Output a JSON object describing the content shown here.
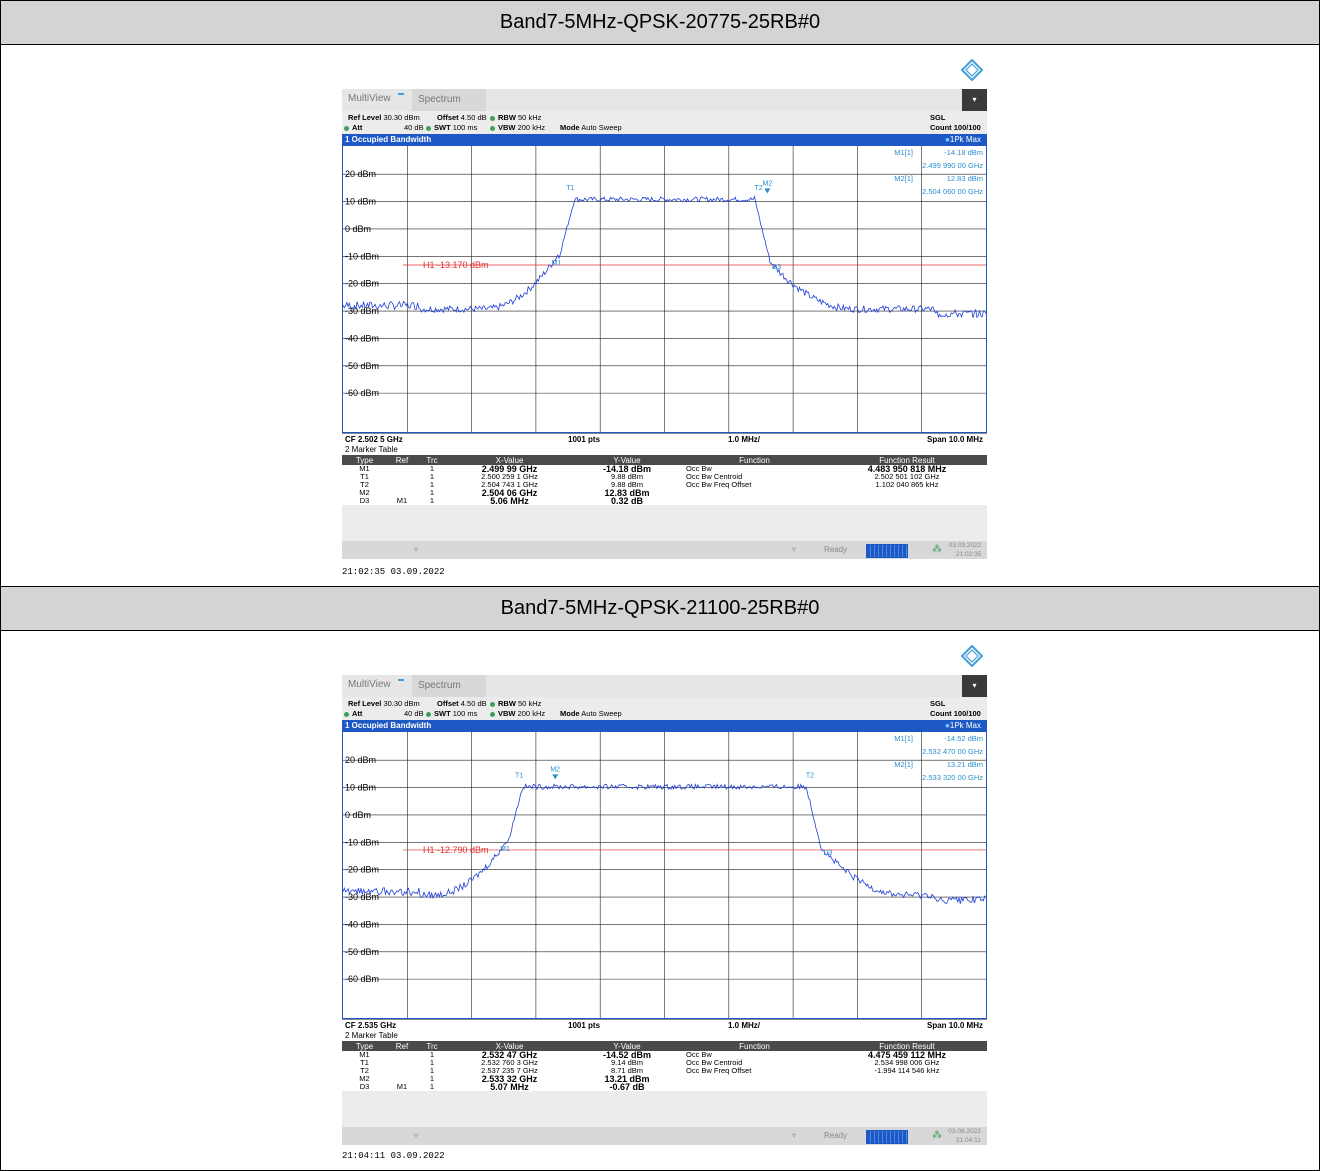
{
  "panels": [
    {
      "header": "Band7-5MHz-QPSK-20775-25RB#0",
      "tab1": "MultiView",
      "tab2": "Spectrum",
      "ref_level_label": "Ref Level",
      "ref_level": "30.30 dBm",
      "offset_label": "Offset",
      "offset": "4.50 dB",
      "rbw_label": "RBW",
      "rbw": "50 kHz",
      "att_label": "Att",
      "att": "40 dB",
      "swt_label": "SWT",
      "swt": "100 ms",
      "vbw_label": "VBW",
      "vbw": "200 kHz",
      "mode_label": "Mode",
      "mode": "Auto Sweep",
      "sgl": "SGL",
      "count": "Count 100/100",
      "window_title": "1 Occupied Bandwidth",
      "trace_label": "1Pk Max",
      "m1_label": "M1[1]",
      "m1_level": "-14.18 dBm",
      "m1_freq": "2.499 990 00 GHz",
      "m2_label": "M2[1]",
      "m2_level": "12.83 dBm",
      "m2_freq": "2.504 060 00 GHz",
      "ylabels": [
        "20 dBm",
        "10 dBm",
        "0 dBm",
        "-10 dBm",
        "-20 dBm",
        "-30 dBm",
        "-40 dBm",
        "-50 dBm",
        "-60 dBm"
      ],
      "h1_label": "H1 -13.170 dBm",
      "h1_value": -13.17,
      "cf": "CF 2.502 5 GHz",
      "pts": "1001 pts",
      "div": "1.0 MHz/",
      "span": "Span 10.0 MHz",
      "marker_table_title": "2 Marker Table",
      "table_headers": [
        "Type",
        "Ref",
        "Trc",
        "X-Value",
        "Y-Value",
        "Function",
        "Function Result"
      ],
      "rows": [
        [
          "M1",
          "",
          "1",
          "2.499 99 GHz",
          "-14.18 dBm",
          "Occ Bw",
          "4.483 950 818 MHz"
        ],
        [
          "T1",
          "",
          "1",
          "2.500 259 1 GHz",
          "9.88 dBm",
          "Occ Bw Centroid",
          "2.502 501 102 GHz"
        ],
        [
          "T2",
          "",
          "1",
          "2.504 743 1 GHz",
          "9.88 dBm",
          "Occ Bw Freq Offset",
          "1.102 040 865 kHz"
        ],
        [
          "M2",
          "",
          "1",
          "2.504 06 GHz",
          "12.83 dBm",
          "",
          ""
        ],
        [
          "D3",
          "M1",
          "1",
          "5.06 MHz",
          "0.32 dB",
          "",
          ""
        ]
      ],
      "status": "Ready",
      "status_date": "03.09.2022",
      "status_time": "21:02:35",
      "timestamp": "21:02:35  03.09.2022",
      "trace": {
        "t1_div": 3.6,
        "t2_div": 6.4,
        "m2_div": 6.6,
        "flat": 10.5,
        "floor": -30.5
      }
    },
    {
      "header": "Band7-5MHz-QPSK-21100-25RB#0",
      "tab1": "MultiView",
      "tab2": "Spectrum",
      "ref_level_label": "Ref Level",
      "ref_level": "30.30 dBm",
      "offset_label": "Offset",
      "offset": "4.50 dB",
      "rbw_label": "RBW",
      "rbw": "50 kHz",
      "att_label": "Att",
      "att": "40 dB",
      "swt_label": "SWT",
      "swt": "100 ms",
      "vbw_label": "VBW",
      "vbw": "200 kHz",
      "mode_label": "Mode",
      "mode": "Auto Sweep",
      "sgl": "SGL",
      "count": "Count 100/100",
      "window_title": "1 Occupied Bandwidth",
      "trace_label": "1Pk Max",
      "m1_label": "M1[1]",
      "m1_level": "-14.52 dBm",
      "m1_freq": "2.532 470 00 GHz",
      "m2_label": "M2[1]",
      "m2_level": "13.21 dBm",
      "m2_freq": "2.533 320 00 GHz",
      "ylabels": [
        "20 dBm",
        "10 dBm",
        "0 dBm",
        "-10 dBm",
        "-20 dBm",
        "-30 dBm",
        "-40 dBm",
        "-50 dBm",
        "-60 dBm"
      ],
      "h1_label": "H1 -12.790 dBm",
      "h1_value": -12.79,
      "cf": "CF 2.535 GHz",
      "pts": "1001 pts",
      "div": "1.0 MHz/",
      "span": "Span 10.0 MHz",
      "marker_table_title": "2 Marker Table",
      "table_headers": [
        "Type",
        "Ref",
        "Trc",
        "X-Value",
        "Y-Value",
        "Function",
        "Function Result"
      ],
      "rows": [
        [
          "M1",
          "",
          "1",
          "2.532 47 GHz",
          "-14.52 dBm",
          "Occ Bw",
          "4.475 459 112 MHz"
        ],
        [
          "T1",
          "",
          "1",
          "2.532 760 3 GHz",
          "9.14 dBm",
          "Occ Bw Centroid",
          "2.534 998 006 GHz"
        ],
        [
          "T2",
          "",
          "1",
          "2.537 235 7 GHz",
          "8.71 dBm",
          "Occ Bw Freq Offset",
          "-1.994 114 546 kHz"
        ],
        [
          "M2",
          "",
          "1",
          "2.533 32 GHz",
          "13.21 dBm",
          "",
          ""
        ],
        [
          "D3",
          "M1",
          "1",
          "5.07 MHz",
          "-0.67 dB",
          "",
          ""
        ]
      ],
      "status": "Ready",
      "status_date": "03.09.2022",
      "status_time": "21:04:11",
      "timestamp": "21:04:11  03.09.2022",
      "trace": {
        "t1_div": 2.8,
        "t2_div": 7.2,
        "m2_div": 3.3,
        "flat": 10.0,
        "floor": -30.5
      }
    }
  ]
}
